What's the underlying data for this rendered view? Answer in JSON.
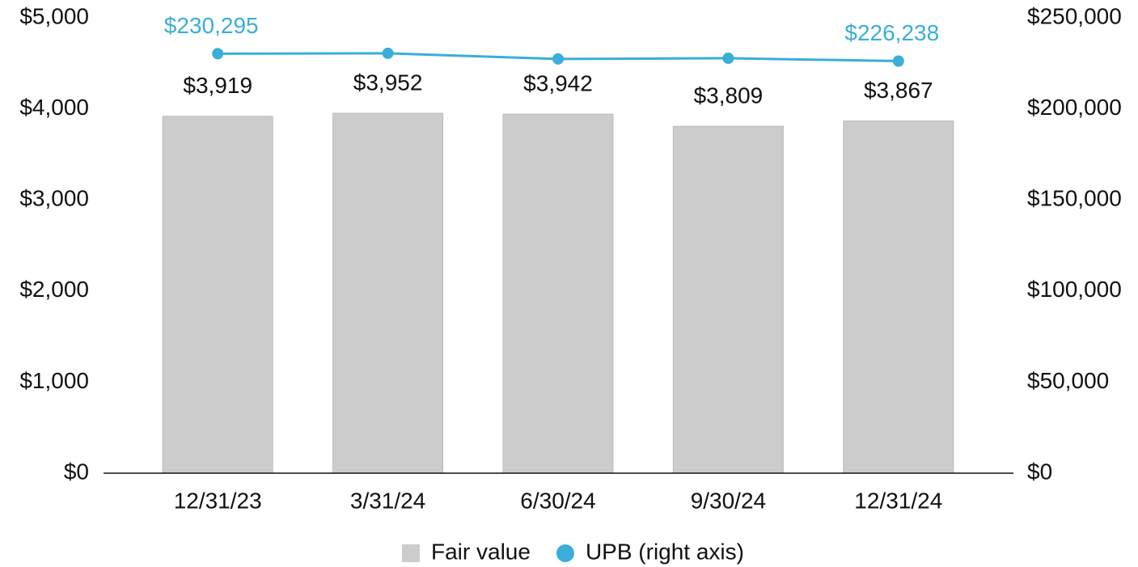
{
  "chart_data": {
    "type": "combo",
    "categories": [
      "12/31/23",
      "3/31/24",
      "6/30/24",
      "9/30/24",
      "12/31/24"
    ],
    "series": [
      {
        "name": "Fair value",
        "type": "bar",
        "color": "#cccccc",
        "values": [
          3919,
          3952,
          3942,
          3809,
          3867
        ],
        "value_labels": [
          "$3,919",
          "$3,952",
          "$3,942",
          "$3,809",
          "$3,867"
        ]
      },
      {
        "name": "UPB (right axis)",
        "type": "line",
        "axis": "y2",
        "color": "#3aaed8",
        "values": [
          230295,
          230500,
          227400,
          227800,
          226238
        ],
        "value_labels": [
          "$230,295",
          null,
          null,
          null,
          "$226,238"
        ]
      }
    ],
    "ylim": [
      0,
      5000
    ],
    "yticks": [
      {
        "value": 0,
        "label": "$0"
      },
      {
        "value": 1000,
        "label": "$1,000"
      },
      {
        "value": 2000,
        "label": "$2,000"
      },
      {
        "value": 3000,
        "label": "$3,000"
      },
      {
        "value": 4000,
        "label": "$4,000"
      },
      {
        "value": 5000,
        "label": "$5,000"
      }
    ],
    "y2lim": [
      0,
      250000
    ],
    "y2ticks": [
      {
        "value": 0,
        "label": "$0"
      },
      {
        "value": 50000,
        "label": "$50,000"
      },
      {
        "value": 100000,
        "label": "$100,000"
      },
      {
        "value": 150000,
        "label": "$150,000"
      },
      {
        "value": 200000,
        "label": "$200,000"
      },
      {
        "value": 250000,
        "label": "$250,000"
      }
    ],
    "grid": false,
    "legend": "bottom"
  }
}
